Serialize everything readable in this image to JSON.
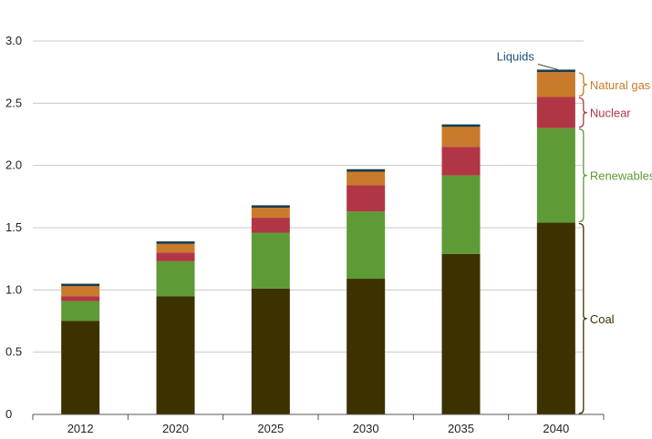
{
  "chart_data": {
    "type": "bar",
    "stacked": true,
    "title": "",
    "xlabel": "",
    "ylabel": "",
    "ylim": [
      0,
      3.0
    ],
    "yticks": [
      "0",
      "0.5",
      "1.0",
      "1.5",
      "2.0",
      "2.5",
      "3.0"
    ],
    "ytick_values": [
      0,
      0.5,
      1.0,
      1.5,
      2.0,
      2.5,
      3.0
    ],
    "grid": true,
    "categories": [
      "2012",
      "2020",
      "2025",
      "2030",
      "2035",
      "2040"
    ],
    "series": [
      {
        "name": "Coal",
        "color": "#3d3100",
        "values": [
          0.75,
          0.95,
          1.01,
          1.09,
          1.29,
          1.54
        ]
      },
      {
        "name": "Renewables",
        "color": "#5e9b36",
        "values": [
          0.16,
          0.28,
          0.45,
          0.54,
          0.63,
          0.76
        ]
      },
      {
        "name": "Nuclear",
        "color": "#b13645",
        "values": [
          0.04,
          0.07,
          0.12,
          0.21,
          0.23,
          0.25
        ]
      },
      {
        "name": "Natural gas",
        "color": "#c97a2a",
        "values": [
          0.08,
          0.07,
          0.08,
          0.11,
          0.16,
          0.2
        ]
      },
      {
        "name": "Liquids",
        "color": "#1c3b4a",
        "values": [
          0.02,
          0.02,
          0.02,
          0.02,
          0.02,
          0.02
        ]
      }
    ],
    "legend": {
      "placement": "right of last bar",
      "entries": [
        {
          "name": "Liquids",
          "color": "#1c4f7a"
        },
        {
          "name": "Natural gas",
          "color": "#c97a2a"
        },
        {
          "name": "Nuclear",
          "color": "#b13645"
        },
        {
          "name": "Renewables",
          "color": "#5e9b36"
        },
        {
          "name": "Coal",
          "color": "#3d3100"
        }
      ]
    }
  }
}
